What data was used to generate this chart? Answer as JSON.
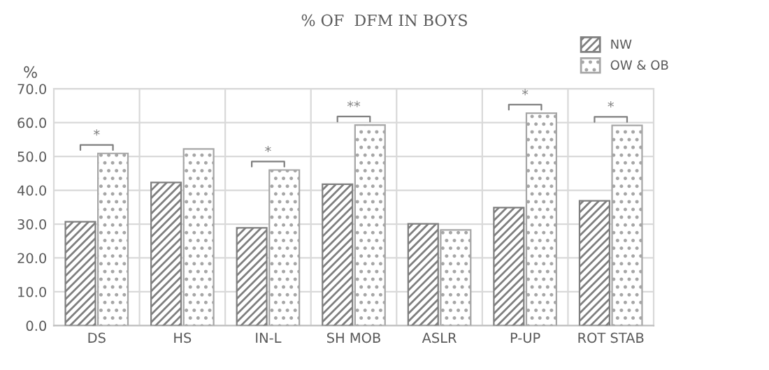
{
  "chart_data": {
    "type": "bar",
    "title": "% OF  DFM IN BOYS",
    "ylabel": "%",
    "categories": [
      "DS",
      "HS",
      "IN-L",
      "SH MOB",
      "ASLR",
      "P-UP",
      "ROT STAB"
    ],
    "series": [
      {
        "name": "NW",
        "color": "#7f7f7f",
        "values": [
          30.7,
          42.3,
          28.9,
          41.8,
          30.1,
          34.9,
          36.9
        ]
      },
      {
        "name": "OW & OB",
        "color": "#a6a6a6",
        "values": [
          50.9,
          52.2,
          46.0,
          59.3,
          28.3,
          62.8,
          59.2
        ]
      }
    ],
    "ylim": [
      0,
      70
    ],
    "yticks": [
      {
        "value": 0,
        "label": "0.0"
      },
      {
        "value": 10,
        "label": "10.0"
      },
      {
        "value": 20,
        "label": "20.0"
      },
      {
        "value": 30,
        "label": "30.0"
      },
      {
        "value": 40,
        "label": "40.0"
      },
      {
        "value": 50,
        "label": "50.0"
      },
      {
        "value": 60,
        "label": "60.0"
      },
      {
        "value": 70,
        "label": "70.0"
      }
    ],
    "grid": true,
    "legend": "top right",
    "annotations": [
      {
        "text": "*",
        "x": "DS",
        "y": 50.9
      },
      {
        "text": "*",
        "x": "IN-L",
        "y": 46.0
      },
      {
        "text": "**",
        "x": "SH MOB",
        "y": 59.3
      },
      {
        "text": "*",
        "x": "P-UP",
        "y": 62.8
      },
      {
        "text": "*",
        "x": "ROT STAB",
        "y": 59.2
      }
    ]
  }
}
